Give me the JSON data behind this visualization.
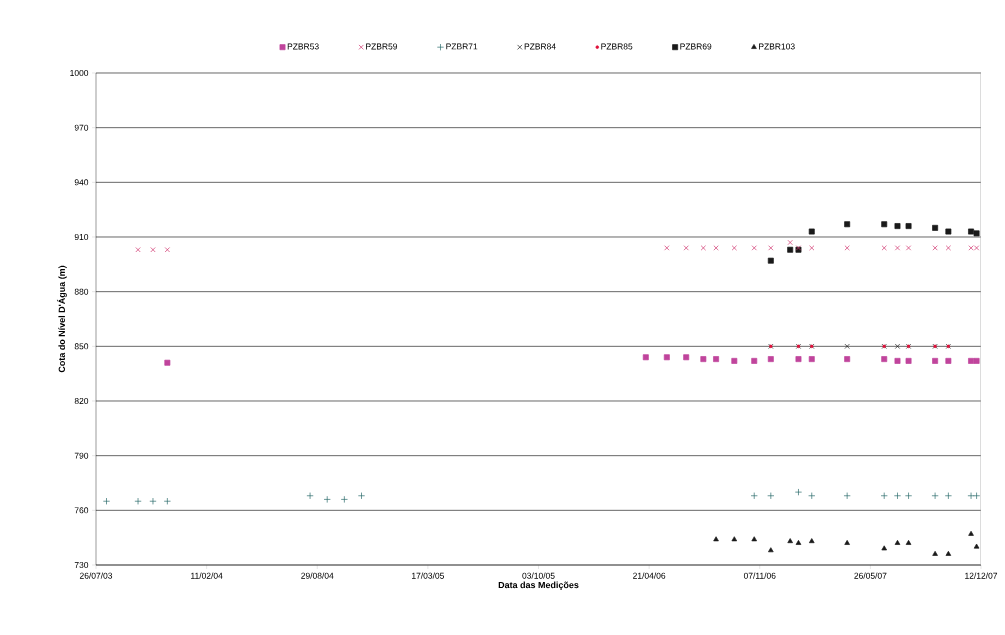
{
  "chart_data": {
    "type": "scatter",
    "xlabel": "Data das Medições",
    "ylabel": "Cota do Nível D'Água (m)",
    "xlim": [
      "2003-07-26",
      "2007-12-12"
    ],
    "ylim": [
      730,
      1000
    ],
    "xticks": [
      {
        "value": "2003-07-26",
        "label": "26/07/03"
      },
      {
        "value": "2004-02-11",
        "label": "11/02/04"
      },
      {
        "value": "2004-08-29",
        "label": "29/08/04"
      },
      {
        "value": "2005-03-17",
        "label": "17/03/05"
      },
      {
        "value": "2005-10-03",
        "label": "03/10/05"
      },
      {
        "value": "2006-04-21",
        "label": "21/04/06"
      },
      {
        "value": "2006-11-07",
        "label": "07/11/06"
      },
      {
        "value": "2007-05-26",
        "label": "26/05/07"
      },
      {
        "value": "2007-12-12",
        "label": "12/12/07"
      }
    ],
    "yticks": [
      730,
      760,
      790,
      820,
      850,
      880,
      910,
      940,
      970,
      1000
    ],
    "grid": "y",
    "legend": "top",
    "series": [
      {
        "name": "PZBR53",
        "color": "#c0449c",
        "marker": "square",
        "x": [
          "2003-12-02",
          "2006-04-15",
          "2006-05-23",
          "2006-06-27",
          "2006-07-28",
          "2006-08-20",
          "2006-09-22",
          "2006-10-28",
          "2006-11-27",
          "2007-01-16",
          "2007-02-09",
          "2007-04-14",
          "2007-06-20",
          "2007-07-14",
          "2007-08-03",
          "2007-09-20",
          "2007-10-14",
          "2007-11-24",
          "2007-12-04"
        ],
        "values": [
          841,
          844,
          844,
          844,
          843,
          843,
          842,
          842,
          843,
          843,
          843,
          843,
          843,
          842,
          842,
          842,
          842,
          842,
          842
        ]
      },
      {
        "name": "PZBR59",
        "color": "#d0306a",
        "marker": "cross",
        "x": [
          "2003-10-10",
          "2003-11-06",
          "2003-12-02",
          "2006-05-23",
          "2006-06-27",
          "2006-07-28",
          "2006-08-20",
          "2006-09-22",
          "2006-10-28",
          "2006-11-27",
          "2007-01-01",
          "2007-01-16",
          "2007-02-09",
          "2007-04-14",
          "2007-06-20",
          "2007-07-14",
          "2007-08-03",
          "2007-09-20",
          "2007-10-14",
          "2007-11-24",
          "2007-12-04"
        ],
        "values": [
          903,
          903,
          903,
          904,
          904,
          904,
          904,
          904,
          904,
          904,
          907,
          904,
          904,
          904,
          904,
          904,
          904,
          904,
          904,
          904,
          904
        ]
      },
      {
        "name": "PZBR71",
        "color": "#2a6a6a",
        "marker": "plus",
        "x": [
          "2003-08-14",
          "2003-10-10",
          "2003-11-06",
          "2003-12-02",
          "2004-08-16",
          "2004-09-16",
          "2004-10-17",
          "2004-11-17",
          "2006-10-28",
          "2006-11-27",
          "2007-01-16",
          "2007-02-09",
          "2007-04-14",
          "2007-06-20",
          "2007-07-14",
          "2007-08-03",
          "2007-09-20",
          "2007-10-14",
          "2007-11-24",
          "2007-12-04"
        ],
        "values": [
          765,
          765,
          765,
          765,
          768,
          766,
          766,
          768,
          768,
          768,
          770,
          768,
          768,
          768,
          768,
          768,
          768,
          768,
          768,
          768
        ]
      },
      {
        "name": "PZBR84",
        "color": "#1a1a1a",
        "marker": "cross",
        "x": [
          "2006-11-27",
          "2007-01-16",
          "2007-02-09",
          "2007-04-14",
          "2007-06-20",
          "2007-07-14",
          "2007-08-03",
          "2007-09-20",
          "2007-10-14"
        ],
        "values": [
          850,
          850,
          850,
          850,
          850,
          850,
          850,
          850,
          850
        ]
      },
      {
        "name": "PZBR85",
        "color": "#e0103a",
        "marker": "circle",
        "x": [
          "2006-11-27",
          "2007-01-16",
          "2007-02-09",
          "2007-06-20",
          "2007-08-03",
          "2007-09-20",
          "2007-10-14"
        ],
        "values": [
          850,
          850,
          850,
          850,
          850,
          850,
          850
        ]
      },
      {
        "name": "PZBR69",
        "color": "#1a1a1a",
        "marker": "square",
        "x": [
          "2006-11-27",
          "2007-01-01",
          "2007-01-16",
          "2007-02-09",
          "2007-04-14",
          "2007-06-20",
          "2007-07-14",
          "2007-08-03",
          "2007-09-20",
          "2007-10-14",
          "2007-11-24",
          "2007-12-04"
        ],
        "values": [
          897,
          903,
          903,
          913,
          917,
          917,
          916,
          916,
          915,
          913,
          913,
          912
        ]
      },
      {
        "name": "PZBR103",
        "color": "#1a1a1a",
        "marker": "triangle",
        "x": [
          "2006-08-20",
          "2006-09-22",
          "2006-10-28",
          "2006-11-27",
          "2007-01-01",
          "2007-01-16",
          "2007-02-09",
          "2007-04-14",
          "2007-06-20",
          "2007-07-14",
          "2007-08-03",
          "2007-09-20",
          "2007-10-14",
          "2007-11-24",
          "2007-12-04"
        ],
        "values": [
          744,
          744,
          744,
          738,
          743,
          742,
          743,
          742,
          739,
          742,
          742,
          736,
          736,
          747,
          740
        ]
      }
    ]
  }
}
